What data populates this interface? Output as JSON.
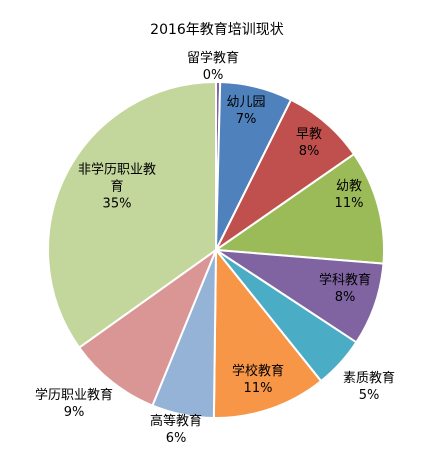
{
  "chart_data": {
    "type": "pie",
    "title": "2016年教育培训现状",
    "slices": [
      {
        "label": "留学教育",
        "value": 0.4,
        "pct_label": "0%",
        "color": "#8064A2",
        "label_mode": "outside"
      },
      {
        "label": "幼儿园",
        "value": 7,
        "pct_label": "7%",
        "color": "#4F81BD",
        "label_mode": "inside"
      },
      {
        "label": "早教",
        "value": 8,
        "pct_label": "8%",
        "color": "#C0504D",
        "label_mode": "inside"
      },
      {
        "label": "幼教",
        "value": 11,
        "pct_label": "11%",
        "color": "#9BBB59",
        "label_mode": "inside"
      },
      {
        "label": "学科教育",
        "value": 8,
        "pct_label": "8%",
        "color": "#8064A2",
        "label_mode": "inside"
      },
      {
        "label": "素质教育",
        "value": 5,
        "pct_label": "5%",
        "color": "#4BACC6",
        "label_mode": "outside"
      },
      {
        "label": "学校教育",
        "value": 11,
        "pct_label": "11%",
        "color": "#F79646",
        "label_mode": "inside"
      },
      {
        "label": "高等教育",
        "value": 6,
        "pct_label": "6%",
        "color": "#95B3D7",
        "label_mode": "outside"
      },
      {
        "label": "学历职业教育",
        "value": 9,
        "pct_label": "9%",
        "color": "#D99694",
        "label_mode": "outside"
      },
      {
        "label": "非学历职业教育",
        "value": 35,
        "pct_label": "35%",
        "color": "#C3D69B",
        "label_mode": "inside",
        "label_lines": [
          "非学历职业教",
          "育"
        ]
      }
    ],
    "legend": "none",
    "start": "top",
    "direction": "clockwise"
  }
}
